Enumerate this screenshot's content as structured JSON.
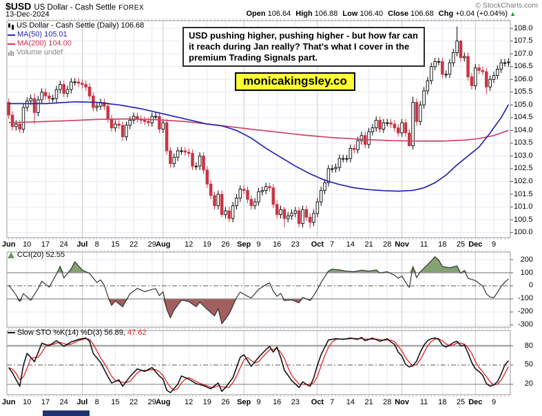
{
  "header": {
    "symbol": "$USD",
    "name": "US Dollar - Cash Settle",
    "exchange": "FOREX",
    "date": "13-Dec-2024",
    "copyright": "© StockCharts.com",
    "quote": [
      {
        "label": "Open",
        "value": "106.64"
      },
      {
        "label": "High",
        "value": "106.88"
      },
      {
        "label": "Low",
        "value": "106.40"
      },
      {
        "label": "Close",
        "value": "106.68"
      },
      {
        "label": "Chg",
        "value": "+0.04 (+0.04%)"
      }
    ],
    "change_direction": "up"
  },
  "annotation": {
    "text": "USD pushing higher, pushing higher - but how far can it reach during Jan really? That's what I cover in the premium Trading Signals part."
  },
  "watermark": "monicakingsley.co",
  "legend": {
    "series": "US Dollar - Cash Settle (Daily) 106.68",
    "ma50": "MA(50) 105.01",
    "ma200": "MA(200) 104.00",
    "volume": "Volume undef",
    "cci": "CCI(20) 52.55",
    "sto_black": "Slow STO %K(14) %D(3) 56.89,",
    "sto_red": "47.62"
  },
  "colors": {
    "candle_down": "#cc3344",
    "candle_up_fill": "#ffffff",
    "candle_black": "#000000",
    "ma50": "#2525af",
    "ma200": "#cc4466",
    "cci_line": "#333333",
    "cci_fill_pos": "#85a272",
    "cci_fill_neg": "#a25f5f",
    "sto_k": "#111111",
    "sto_d": "#e02222",
    "grid_light": "#e6e9f4",
    "grid_month": "#c6c6c6",
    "panel_border": "#999999",
    "threshold": "#8a8a8a",
    "accent_yellow": "#ffff35",
    "change_up_green": "#009933"
  },
  "x_labels": [
    {
      "label": "Jun",
      "index": 0,
      "month": true
    },
    {
      "label": "10",
      "index": 5
    },
    {
      "label": "17",
      "index": 10
    },
    {
      "label": "24",
      "index": 15
    },
    {
      "label": "Jul",
      "index": 20,
      "month": true
    },
    {
      "label": "8",
      "index": 24
    },
    {
      "label": "15",
      "index": 29
    },
    {
      "label": "22",
      "index": 34
    },
    {
      "label": "29",
      "index": 39
    },
    {
      "label": "Aug",
      "index": 42,
      "month": true
    },
    {
      "label": "12",
      "index": 49
    },
    {
      "label": "19",
      "index": 54
    },
    {
      "label": "26",
      "index": 59
    },
    {
      "label": "Sep",
      "index": 64,
      "month": true
    },
    {
      "label": "9",
      "index": 68
    },
    {
      "label": "16",
      "index": 73
    },
    {
      "label": "23",
      "index": 78
    },
    {
      "label": "Oct",
      "index": 84,
      "month": true
    },
    {
      "label": "7",
      "index": 88
    },
    {
      "label": "14",
      "index": 93
    },
    {
      "label": "21",
      "index": 98
    },
    {
      "label": "28",
      "index": 103
    },
    {
      "label": "Nov",
      "index": 107,
      "month": true
    },
    {
      "label": "11",
      "index": 113
    },
    {
      "label": "18",
      "index": 118
    },
    {
      "label": "25",
      "index": 123
    },
    {
      "label": "Dec",
      "index": 127,
      "month": true
    },
    {
      "label": "9",
      "index": 132
    }
  ],
  "chart_data": [
    {
      "type": "candlestick",
      "title": "US Dollar - Cash Settle (Daily)",
      "last_close": 106.68,
      "ylim": [
        99.8,
        108.3
      ],
      "tick_min": 100.0,
      "tick_max": 108.0,
      "tick_step": 0.5,
      "first_open": 105.1,
      "default_wick": 0.15,
      "closes": [
        104.6,
        104.15,
        104.25,
        104.05,
        104.9,
        105.15,
        105.25,
        104.7,
        105.2,
        105.5,
        105.35,
        105.25,
        105.25,
        105.6,
        105.8,
        105.45,
        105.6,
        105.9,
        105.9,
        105.85,
        105.8,
        105.7,
        105.35,
        104.9,
        104.95,
        105.1,
        104.95,
        104.45,
        104.1,
        104.25,
        104.2,
        103.75,
        104.2,
        104.4,
        104.55,
        104.45,
        104.4,
        104.35,
        104.3,
        104.55,
        104.55,
        104.05,
        104.3,
        103.2,
        102.7,
        102.95,
        103.2,
        103.2,
        103.15,
        103.1,
        102.6,
        102.6,
        103.0,
        102.45,
        101.9,
        101.45,
        101.05,
        101.5,
        100.7,
        100.85,
        100.55,
        101.05,
        101.35,
        101.7,
        101.65,
        101.3,
        101.05,
        101.2,
        101.6,
        101.65,
        101.8,
        101.75,
        101.1,
        100.7,
        100.9,
        100.55,
        100.65,
        100.75,
        100.85,
        100.35,
        100.9,
        100.6,
        100.4,
        100.75,
        101.2,
        101.65,
        101.95,
        102.5,
        102.5,
        102.55,
        102.9,
        102.9,
        102.9,
        103.3,
        103.25,
        103.6,
        103.8,
        103.45,
        103.95,
        104.1,
        104.4,
        104.05,
        104.3,
        104.3,
        104.25,
        104.1,
        103.9,
        104.3,
        103.9,
        103.4,
        105.1,
        104.35,
        105.0,
        105.55,
        105.95,
        106.5,
        106.7,
        106.7,
        106.2,
        106.2,
        106.65,
        107.05,
        107.5,
        106.85,
        106.9,
        106.1,
        105.75,
        106.45,
        106.35,
        106.3,
        105.7,
        106.0,
        106.15,
        106.4,
        106.65,
        106.65,
        106.68
      ],
      "overrides": {
        "7": {
          "l": 104.25,
          "h": 105.45
        },
        "58": {
          "l": 100.6
        },
        "75": {
          "l": 100.21,
          "h": 101.0
        },
        "82": {
          "l": 100.16
        },
        "109": {
          "l": 103.37
        },
        "110": {
          "h": 105.32
        },
        "121": {
          "h": 107.2
        },
        "122": {
          "h": 108.07
        },
        "123": {
          "h": 107.55
        },
        "130": {
          "l": 105.42
        }
      },
      "ma50_points": [
        [
          0,
          105.05
        ],
        [
          10,
          105.05
        ],
        [
          18,
          105.12
        ],
        [
          24,
          105.1
        ],
        [
          30,
          105.0
        ],
        [
          36,
          104.85
        ],
        [
          42,
          104.65
        ],
        [
          48,
          104.45
        ],
        [
          54,
          104.25
        ],
        [
          58,
          104.18
        ],
        [
          62,
          104.0
        ],
        [
          66,
          103.7
        ],
        [
          70,
          103.3
        ],
        [
          74,
          102.95
        ],
        [
          78,
          102.6
        ],
        [
          82,
          102.3
        ],
        [
          86,
          102.05
        ],
        [
          90,
          101.88
        ],
        [
          94,
          101.75
        ],
        [
          98,
          101.68
        ],
        [
          102,
          101.64
        ],
        [
          106,
          101.62
        ],
        [
          110,
          101.65
        ],
        [
          113,
          101.75
        ],
        [
          116,
          101.95
        ],
        [
          119,
          102.25
        ],
        [
          122,
          102.65
        ],
        [
          125,
          103.0
        ],
        [
          128,
          103.35
        ],
        [
          131,
          103.9
        ],
        [
          134,
          104.5
        ],
        [
          136,
          105.01
        ]
      ],
      "ma200_points": [
        [
          0,
          104.3
        ],
        [
          8,
          104.34
        ],
        [
          16,
          104.38
        ],
        [
          24,
          104.43
        ],
        [
          32,
          104.45
        ],
        [
          40,
          104.42
        ],
        [
          48,
          104.35
        ],
        [
          56,
          104.22
        ],
        [
          64,
          104.08
        ],
        [
          72,
          103.95
        ],
        [
          80,
          103.82
        ],
        [
          88,
          103.72
        ],
        [
          96,
          103.65
        ],
        [
          104,
          103.6
        ],
        [
          112,
          103.58
        ],
        [
          118,
          103.58
        ],
        [
          124,
          103.62
        ],
        [
          128,
          103.68
        ],
        [
          132,
          103.8
        ],
        [
          136,
          104.0
        ]
      ]
    },
    {
      "type": "line",
      "name": "CCI(20)",
      "current": 52.55,
      "ylim": [
        -316,
        258
      ],
      "yticks": [
        200,
        100,
        0,
        -100,
        -200,
        -300
      ],
      "upper": 100,
      "lower": -100,
      "mid": 0,
      "points": [
        [
          0,
          5
        ],
        [
          2,
          -70
        ],
        [
          3,
          -120
        ],
        [
          4,
          -60
        ],
        [
          6,
          -110
        ],
        [
          8,
          -20
        ],
        [
          9,
          35
        ],
        [
          11,
          -10
        ],
        [
          13,
          90
        ],
        [
          14,
          150
        ],
        [
          15,
          60
        ],
        [
          17,
          130
        ],
        [
          18,
          185
        ],
        [
          20,
          120
        ],
        [
          22,
          95
        ],
        [
          23,
          60
        ],
        [
          24,
          25
        ],
        [
          25,
          45
        ],
        [
          26,
          5
        ],
        [
          27,
          -80
        ],
        [
          28,
          -150
        ],
        [
          29,
          -115
        ],
        [
          31,
          -160
        ],
        [
          33,
          -60
        ],
        [
          35,
          -20
        ],
        [
          37,
          -45
        ],
        [
          39,
          -28
        ],
        [
          40,
          -22
        ],
        [
          41,
          -75
        ],
        [
          42,
          -45
        ],
        [
          43,
          -180
        ],
        [
          44,
          -245
        ],
        [
          45,
          -185
        ],
        [
          47,
          -110
        ],
        [
          49,
          -120
        ],
        [
          51,
          -160
        ],
        [
          52,
          -125
        ],
        [
          54,
          -180
        ],
        [
          56,
          -230
        ],
        [
          57,
          -175
        ],
        [
          58,
          -290
        ],
        [
          60,
          -215
        ],
        [
          62,
          -90
        ],
        [
          63,
          -48
        ],
        [
          65,
          -80
        ],
        [
          66,
          -92
        ],
        [
          68,
          -28
        ],
        [
          70,
          10
        ],
        [
          71,
          22
        ],
        [
          72,
          -40
        ],
        [
          73,
          -80
        ],
        [
          74,
          -58
        ],
        [
          75,
          -112
        ],
        [
          77,
          -108
        ],
        [
          79,
          -130
        ],
        [
          80,
          -88
        ],
        [
          82,
          -112
        ],
        [
          83,
          -75
        ],
        [
          84,
          -28
        ],
        [
          85,
          25
        ],
        [
          87,
          112
        ],
        [
          88,
          128
        ],
        [
          90,
          122
        ],
        [
          92,
          112
        ],
        [
          94,
          108
        ],
        [
          96,
          120
        ],
        [
          98,
          112
        ],
        [
          100,
          122
        ],
        [
          101,
          98
        ],
        [
          103,
          108
        ],
        [
          105,
          80
        ],
        [
          106,
          58
        ],
        [
          107,
          75
        ],
        [
          108,
          28
        ],
        [
          109,
          -12
        ],
        [
          110,
          148
        ],
        [
          111,
          62
        ],
        [
          112,
          108
        ],
        [
          114,
          162
        ],
        [
          116,
          222
        ],
        [
          117,
          198
        ],
        [
          118,
          148
        ],
        [
          120,
          138
        ],
        [
          122,
          152
        ],
        [
          123,
          96
        ],
        [
          124,
          118
        ],
        [
          125,
          58
        ],
        [
          127,
          40
        ],
        [
          129,
          -2
        ],
        [
          130,
          -62
        ],
        [
          131,
          -86
        ],
        [
          132,
          -90
        ],
        [
          133,
          -52
        ],
        [
          134,
          -4
        ],
        [
          135,
          28
        ],
        [
          136,
          52.55
        ]
      ]
    },
    {
      "type": "line",
      "name": "Slow STO %K(14) %D(3)",
      "k_current": 56.89,
      "d_current": 47.62,
      "ylim": [
        3.9,
        103.6
      ],
      "yticks": [
        80,
        50,
        20
      ],
      "mid": 50,
      "k_points": [
        [
          0,
          46
        ],
        [
          1,
          38
        ],
        [
          3,
          17
        ],
        [
          4,
          50
        ],
        [
          5,
          68
        ],
        [
          6,
          62
        ],
        [
          7,
          55
        ],
        [
          9,
          84
        ],
        [
          11,
          80
        ],
        [
          13,
          88
        ],
        [
          15,
          79
        ],
        [
          17,
          86
        ],
        [
          19,
          90
        ],
        [
          21,
          92
        ],
        [
          22,
          87
        ],
        [
          23,
          68
        ],
        [
          25,
          54
        ],
        [
          27,
          32
        ],
        [
          28,
          22
        ],
        [
          30,
          27
        ],
        [
          31,
          17
        ],
        [
          33,
          32
        ],
        [
          35,
          44
        ],
        [
          37,
          40
        ],
        [
          39,
          46
        ],
        [
          41,
          33
        ],
        [
          42,
          28
        ],
        [
          43,
          11
        ],
        [
          44,
          7
        ],
        [
          46,
          20
        ],
        [
          47,
          33
        ],
        [
          49,
          28
        ],
        [
          51,
          21
        ],
        [
          53,
          18
        ],
        [
          55,
          13
        ],
        [
          57,
          22
        ],
        [
          58,
          9
        ],
        [
          59,
          15
        ],
        [
          61,
          30
        ],
        [
          63,
          62
        ],
        [
          64,
          66
        ],
        [
          66,
          48
        ],
        [
          68,
          62
        ],
        [
          70,
          74
        ],
        [
          71,
          79
        ],
        [
          72,
          70
        ],
        [
          73,
          78
        ],
        [
          74,
          62
        ],
        [
          75,
          42
        ],
        [
          77,
          26
        ],
        [
          79,
          15
        ],
        [
          80,
          24
        ],
        [
          81,
          20
        ],
        [
          82,
          17
        ],
        [
          83,
          30
        ],
        [
          84,
          50
        ],
        [
          85,
          66
        ],
        [
          87,
          89
        ],
        [
          89,
          91
        ],
        [
          91,
          90
        ],
        [
          93,
          92
        ],
        [
          95,
          90
        ],
        [
          96,
          93
        ],
        [
          97,
          88
        ],
        [
          99,
          92
        ],
        [
          101,
          87
        ],
        [
          103,
          91
        ],
        [
          104,
          86
        ],
        [
          105,
          82
        ],
        [
          106,
          70
        ],
        [
          107,
          64
        ],
        [
          108,
          51
        ],
        [
          109,
          47
        ],
        [
          110,
          49
        ],
        [
          111,
          56
        ],
        [
          112,
          70
        ],
        [
          113,
          81
        ],
        [
          114,
          88
        ],
        [
          115,
          91
        ],
        [
          116,
          92
        ],
        [
          117,
          90
        ],
        [
          118,
          81
        ],
        [
          119,
          78
        ],
        [
          120,
          81
        ],
        [
          121,
          85
        ],
        [
          122,
          87
        ],
        [
          123,
          80
        ],
        [
          124,
          81
        ],
        [
          125,
          69
        ],
        [
          126,
          54
        ],
        [
          127,
          44
        ],
        [
          128,
          40
        ],
        [
          129,
          34
        ],
        [
          130,
          21
        ],
        [
          131,
          17
        ],
        [
          132,
          19
        ],
        [
          133,
          24
        ],
        [
          134,
          36
        ],
        [
          135,
          50
        ],
        [
          136,
          56.89
        ]
      ]
    }
  ]
}
